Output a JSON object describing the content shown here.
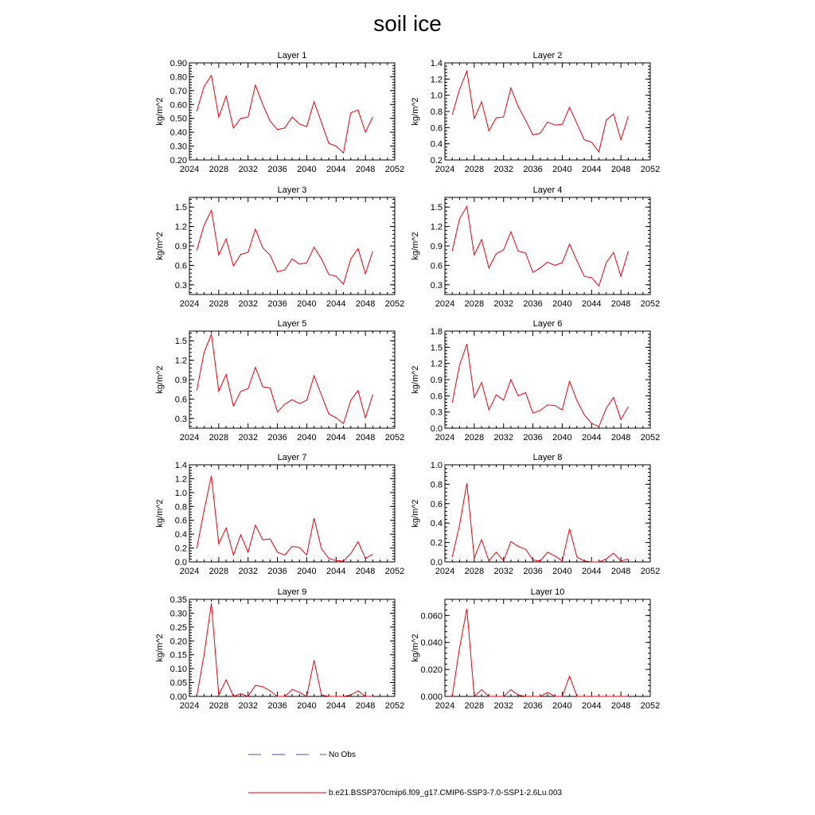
{
  "title": "soil ice",
  "legend": {
    "entries": [
      {
        "label": "No Obs",
        "color": "#3b4fd6",
        "style": "dashed"
      },
      {
        "label": "b.e21.BSSP370cmip6.f09_g17.CMIP6-SSP3-7.0-SSP1-2.6Lu.003",
        "color": "#e8000b",
        "style": "solid"
      }
    ]
  },
  "chart_data": [
    {
      "type": "line",
      "title": "Layer 1",
      "ylabel": "kg/m^2",
      "xlim": [
        2024,
        2052
      ],
      "xticks": [
        2024,
        2028,
        2032,
        2036,
        2040,
        2044,
        2048,
        2052
      ],
      "ylim": [
        0.2,
        0.9
      ],
      "yticks": [
        "0.20",
        "0.30",
        "0.40",
        "0.50",
        "0.60",
        "0.70",
        "0.80",
        "0.90"
      ],
      "series": [
        {
          "color": "#e8000b",
          "x": [
            2025,
            2026,
            2027,
            2028,
            2029,
            2030,
            2031,
            2032,
            2033,
            2034,
            2035,
            2036,
            2037,
            2038,
            2039,
            2040,
            2041,
            2042,
            2043,
            2044,
            2045,
            2046,
            2047,
            2048,
            2049
          ],
          "y": [
            0.55,
            0.73,
            0.81,
            0.51,
            0.66,
            0.43,
            0.5,
            0.51,
            0.74,
            0.6,
            0.48,
            0.42,
            0.43,
            0.51,
            0.46,
            0.44,
            0.62,
            0.47,
            0.32,
            0.3,
            0.25,
            0.54,
            0.56,
            0.4,
            0.51
          ]
        }
      ]
    },
    {
      "type": "line",
      "title": "Layer 2",
      "ylabel": "kg/m^2",
      "xlim": [
        2024,
        2052
      ],
      "xticks": [
        2024,
        2028,
        2032,
        2036,
        2040,
        2044,
        2048,
        2052
      ],
      "ylim": [
        0.2,
        1.4
      ],
      "yticks": [
        "0.2",
        "0.4",
        "0.6",
        "0.8",
        "1.0",
        "1.2",
        "1.4"
      ],
      "series": [
        {
          "color": "#e8000b",
          "x": [
            2025,
            2026,
            2027,
            2028,
            2029,
            2030,
            2031,
            2032,
            2033,
            2034,
            2035,
            2036,
            2037,
            2038,
            2039,
            2040,
            2041,
            2042,
            2043,
            2044,
            2045,
            2046,
            2047,
            2048,
            2049
          ],
          "y": [
            0.76,
            1.07,
            1.3,
            0.71,
            0.92,
            0.56,
            0.72,
            0.73,
            1.09,
            0.86,
            0.69,
            0.51,
            0.53,
            0.67,
            0.63,
            0.64,
            0.85,
            0.65,
            0.45,
            0.42,
            0.3,
            0.69,
            0.77,
            0.45,
            0.74
          ]
        }
      ]
    },
    {
      "type": "line",
      "title": "Layer 3",
      "ylabel": "kg/m^2",
      "xlim": [
        2024,
        2052
      ],
      "xticks": [
        2024,
        2028,
        2032,
        2036,
        2040,
        2044,
        2048,
        2052
      ],
      "ylim": [
        0.15,
        1.65
      ],
      "yticks": [
        "0.3",
        "0.6",
        "0.9",
        "1.2",
        "1.5"
      ],
      "series": [
        {
          "color": "#e8000b",
          "x": [
            2025,
            2026,
            2027,
            2028,
            2029,
            2030,
            2031,
            2032,
            2033,
            2034,
            2035,
            2036,
            2037,
            2038,
            2039,
            2040,
            2041,
            2042,
            2043,
            2044,
            2045,
            2046,
            2047,
            2048,
            2049
          ],
          "y": [
            0.83,
            1.22,
            1.45,
            0.76,
            1.01,
            0.59,
            0.77,
            0.8,
            1.16,
            0.87,
            0.76,
            0.5,
            0.53,
            0.7,
            0.62,
            0.64,
            0.88,
            0.7,
            0.46,
            0.43,
            0.31,
            0.7,
            0.86,
            0.47,
            0.82
          ]
        }
      ]
    },
    {
      "type": "line",
      "title": "Layer 4",
      "ylabel": "kg/m^2",
      "xlim": [
        2024,
        2052
      ],
      "xticks": [
        2024,
        2028,
        2032,
        2036,
        2040,
        2044,
        2048,
        2052
      ],
      "ylim": [
        0.15,
        1.65
      ],
      "yticks": [
        "0.3",
        "0.6",
        "0.9",
        "1.2",
        "1.5"
      ],
      "series": [
        {
          "color": "#e8000b",
          "x": [
            2025,
            2026,
            2027,
            2028,
            2029,
            2030,
            2031,
            2032,
            2033,
            2034,
            2035,
            2036,
            2037,
            2038,
            2039,
            2040,
            2041,
            2042,
            2043,
            2044,
            2045,
            2046,
            2047,
            2048,
            2049
          ],
          "y": [
            0.82,
            1.32,
            1.51,
            0.76,
            1.0,
            0.56,
            0.78,
            0.84,
            1.12,
            0.82,
            0.79,
            0.49,
            0.56,
            0.65,
            0.6,
            0.64,
            0.93,
            0.67,
            0.43,
            0.41,
            0.28,
            0.64,
            0.8,
            0.43,
            0.82
          ]
        }
      ]
    },
    {
      "type": "line",
      "title": "Layer 5",
      "ylabel": "kg/m^2",
      "xlim": [
        2024,
        2052
      ],
      "xticks": [
        2024,
        2028,
        2032,
        2036,
        2040,
        2044,
        2048,
        2052
      ],
      "ylim": [
        0.15,
        1.65
      ],
      "yticks": [
        "0.3",
        "0.6",
        "0.9",
        "1.2",
        "1.5"
      ],
      "series": [
        {
          "color": "#e8000b",
          "x": [
            2025,
            2026,
            2027,
            2028,
            2029,
            2030,
            2031,
            2032,
            2033,
            2034,
            2035,
            2036,
            2037,
            2038,
            2039,
            2040,
            2041,
            2042,
            2043,
            2044,
            2045,
            2046,
            2047,
            2048,
            2049
          ],
          "y": [
            0.73,
            1.32,
            1.6,
            0.72,
            0.98,
            0.49,
            0.72,
            0.76,
            1.09,
            0.79,
            0.77,
            0.4,
            0.52,
            0.59,
            0.53,
            0.58,
            0.96,
            0.66,
            0.37,
            0.31,
            0.22,
            0.58,
            0.73,
            0.31,
            0.67
          ]
        }
      ]
    },
    {
      "type": "line",
      "title": "Layer 6",
      "ylabel": "kg/m^2",
      "xlim": [
        2024,
        2052
      ],
      "xticks": [
        2024,
        2028,
        2032,
        2036,
        2040,
        2044,
        2048,
        2052
      ],
      "ylim": [
        0.0,
        1.8
      ],
      "yticks": [
        "0.0",
        "0.3",
        "0.6",
        "0.9",
        "1.2",
        "1.5",
        "1.8"
      ],
      "series": [
        {
          "color": "#e8000b",
          "x": [
            2025,
            2026,
            2027,
            2028,
            2029,
            2030,
            2031,
            2032,
            2033,
            2034,
            2035,
            2036,
            2037,
            2038,
            2039,
            2040,
            2041,
            2042,
            2043,
            2044,
            2045,
            2046,
            2047,
            2048,
            2049
          ],
          "y": [
            0.47,
            1.17,
            1.56,
            0.57,
            0.85,
            0.34,
            0.62,
            0.52,
            0.9,
            0.6,
            0.66,
            0.28,
            0.33,
            0.43,
            0.42,
            0.34,
            0.87,
            0.51,
            0.25,
            0.09,
            0.03,
            0.37,
            0.57,
            0.16,
            0.4
          ]
        }
      ]
    },
    {
      "type": "line",
      "title": "Layer 7",
      "ylabel": "kg/m^2",
      "xlim": [
        2024,
        2052
      ],
      "xticks": [
        2024,
        2028,
        2032,
        2036,
        2040,
        2044,
        2048,
        2052
      ],
      "ylim": [
        0.0,
        1.4
      ],
      "yticks": [
        "0.0",
        "0.2",
        "0.4",
        "0.6",
        "0.8",
        "1.0",
        "1.2",
        "1.4"
      ],
      "series": [
        {
          "color": "#e8000b",
          "x": [
            2025,
            2026,
            2027,
            2028,
            2029,
            2030,
            2031,
            2032,
            2033,
            2034,
            2035,
            2036,
            2037,
            2038,
            2039,
            2040,
            2041,
            2042,
            2043,
            2044,
            2045,
            2046,
            2047,
            2048,
            2049
          ],
          "y": [
            0.19,
            0.74,
            1.24,
            0.26,
            0.49,
            0.1,
            0.39,
            0.14,
            0.53,
            0.32,
            0.33,
            0.14,
            0.1,
            0.22,
            0.21,
            0.1,
            0.63,
            0.19,
            0.05,
            0.02,
            0.01,
            0.12,
            0.29,
            0.05,
            0.11
          ]
        }
      ]
    },
    {
      "type": "line",
      "title": "Layer 8",
      "ylabel": "kg/m^2",
      "xlim": [
        2024,
        2052
      ],
      "xticks": [
        2024,
        2028,
        2032,
        2036,
        2040,
        2044,
        2048,
        2052
      ],
      "ylim": [
        0.0,
        1.0
      ],
      "yticks": [
        "0.0",
        "0.2",
        "0.4",
        "0.6",
        "0.8",
        "1.0"
      ],
      "series": [
        {
          "color": "#e8000b",
          "x": [
            2025,
            2026,
            2027,
            2028,
            2029,
            2030,
            2031,
            2032,
            2033,
            2034,
            2035,
            2036,
            2037,
            2038,
            2039,
            2040,
            2041,
            2042,
            2043,
            2044,
            2045,
            2046,
            2047,
            2048,
            2049
          ],
          "y": [
            0.05,
            0.38,
            0.81,
            0.04,
            0.23,
            0.01,
            0.1,
            0.01,
            0.21,
            0.16,
            0.13,
            0.02,
            0.01,
            0.1,
            0.06,
            0.01,
            0.34,
            0.05,
            0.01,
            0.0,
            0.0,
            0.03,
            0.09,
            0.01,
            0.03
          ]
        }
      ]
    },
    {
      "type": "line",
      "title": "Layer 9",
      "ylabel": "kg/m^2",
      "xlim": [
        2024,
        2052
      ],
      "xticks": [
        2024,
        2028,
        2032,
        2036,
        2040,
        2044,
        2048,
        2052
      ],
      "ylim": [
        0.0,
        0.35
      ],
      "yticks": [
        "0.00",
        "0.05",
        "0.10",
        "0.15",
        "0.20",
        "0.25",
        "0.30",
        "0.35"
      ],
      "series": [
        {
          "color": "#e8000b",
          "x": [
            2025,
            2026,
            2027,
            2028,
            2029,
            2030,
            2031,
            2032,
            2033,
            2034,
            2035,
            2036,
            2037,
            2038,
            2039,
            2040,
            2041,
            2042,
            2043,
            2044,
            2045,
            2046,
            2047,
            2048,
            2049
          ],
          "y": [
            0.0,
            0.15,
            0.335,
            0.005,
            0.06,
            0.0,
            0.01,
            0.0,
            0.04,
            0.035,
            0.02,
            0.0,
            0.0,
            0.025,
            0.015,
            0.0,
            0.13,
            0.005,
            0.0,
            0.0,
            0.0,
            0.005,
            0.02,
            0.0,
            0.0
          ]
        }
      ]
    },
    {
      "type": "line",
      "title": "Layer 10",
      "ylabel": "kg/m^2",
      "xlim": [
        2024,
        2052
      ],
      "xticks": [
        2024,
        2028,
        2032,
        2036,
        2040,
        2044,
        2048,
        2052
      ],
      "ylim": [
        0.0,
        0.072
      ],
      "yticks": [
        "0.000",
        "0.020",
        "0.040",
        "0.060"
      ],
      "ytickvals": [
        0.0,
        0.02,
        0.04,
        0.06
      ],
      "series": [
        {
          "color": "#e8000b",
          "x": [
            2025,
            2026,
            2027,
            2028,
            2029,
            2030,
            2031,
            2032,
            2033,
            2034,
            2035,
            2036,
            2037,
            2038,
            2039,
            2040,
            2041,
            2042,
            2043,
            2044,
            2045,
            2046,
            2047,
            2048,
            2049
          ],
          "y": [
            0.0,
            0.036,
            0.065,
            0.0,
            0.005,
            0.0,
            0.0,
            0.0,
            0.005,
            0.001,
            0.0,
            0.0,
            0.0,
            0.003,
            0.0,
            0.0,
            0.015,
            0.0,
            0.0,
            0.0,
            0.0,
            0.0,
            0.0,
            0.0,
            0.0
          ]
        }
      ]
    }
  ]
}
